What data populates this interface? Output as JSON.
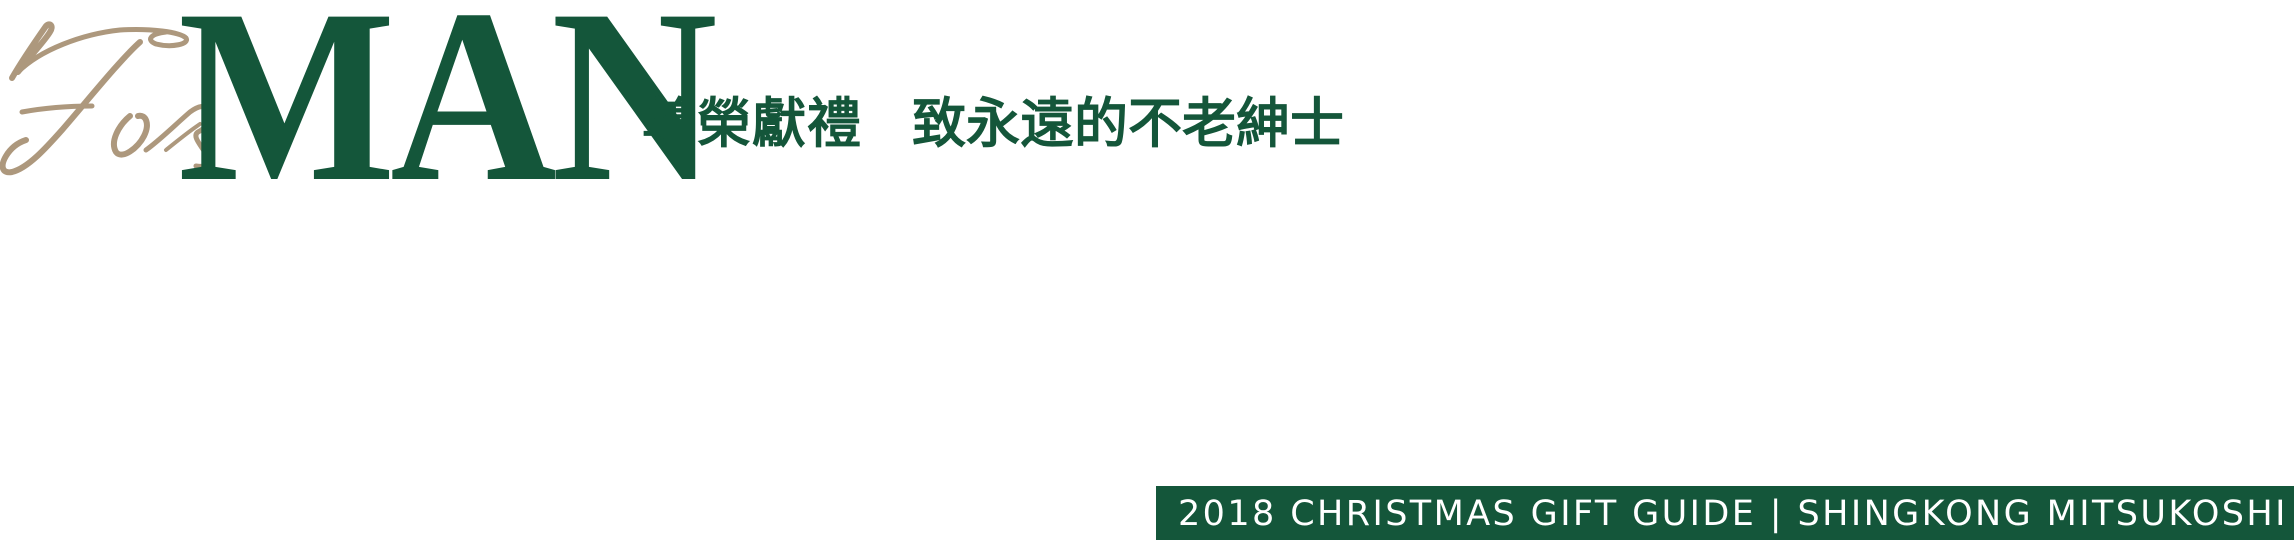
{
  "logo": {
    "script_text": "For",
    "main_word": "MAN"
  },
  "headline": {
    "part1": "尊榮獻禮",
    "part2": "致永遠的不老紳士"
  },
  "banner": {
    "text": "2018 CHRISTMAS GIFT GUIDE | SHINGKONG MITSUKOSHI"
  },
  "colors": {
    "green": "#14563a",
    "tan": "#ad987d",
    "background": "#ffffff"
  }
}
